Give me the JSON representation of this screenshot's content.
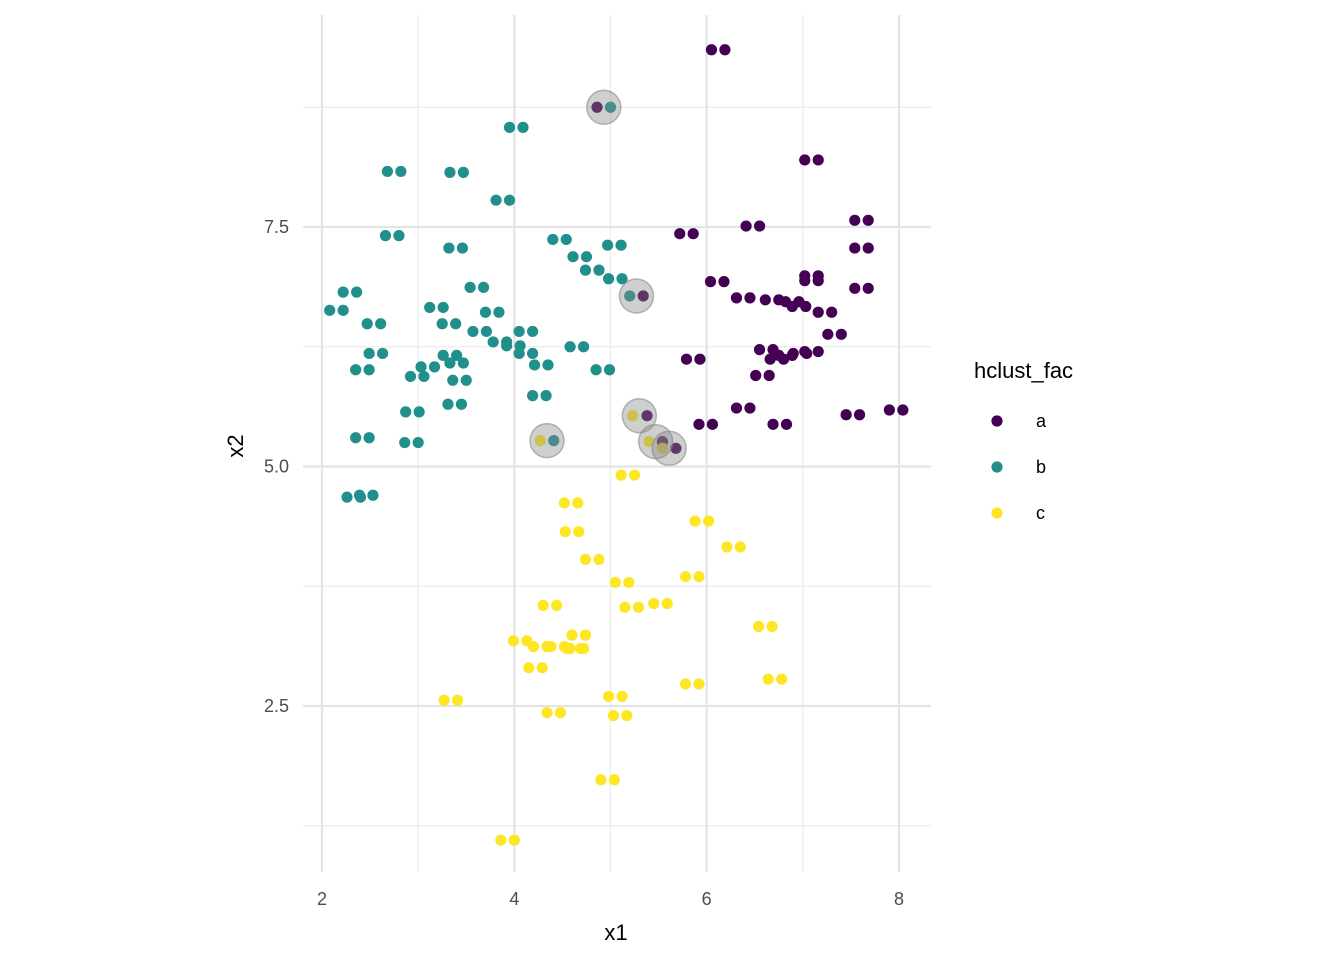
{
  "chart_data": {
    "type": "scatter",
    "xlabel": "x1",
    "ylabel": "x2",
    "xlim": [
      2,
      8
    ],
    "ylim": [
      1.2,
      9.6
    ],
    "x_ticks": [
      2,
      4,
      6,
      8
    ],
    "x_tick_labels": [
      "2",
      "4",
      "6",
      "8"
    ],
    "y_ticks": [
      2.5,
      5.0,
      7.5
    ],
    "y_tick_labels": [
      "2.5",
      "5.0",
      "7.5"
    ],
    "grid": true,
    "legend": {
      "title": "hclust_fac",
      "position": "right",
      "entries": [
        {
          "label": "a",
          "color": "#440154"
        },
        {
          "label": "b",
          "color": "#21908C"
        },
        {
          "label": "c",
          "color": "#FDE725"
        }
      ]
    },
    "highlight_style": {
      "fill": "#888888",
      "opacity": 0.4
    },
    "highlights": [
      {
        "x": 4.93,
        "y": 8.75
      },
      {
        "x": 5.27,
        "y": 6.78
      },
      {
        "x": 5.3,
        "y": 5.53
      },
      {
        "x": 4.34,
        "y": 5.27
      },
      {
        "x": 5.47,
        "y": 5.26
      },
      {
        "x": 5.61,
        "y": 5.19
      }
    ],
    "series": [
      {
        "name": "a",
        "color": "#440154",
        "points": [
          [
            6.05,
            9.35
          ],
          [
            6.19,
            9.35
          ],
          [
            4.86,
            8.75
          ],
          [
            7.02,
            8.2
          ],
          [
            7.16,
            8.2
          ],
          [
            7.54,
            7.57
          ],
          [
            7.68,
            7.57
          ],
          [
            6.41,
            7.51
          ],
          [
            6.55,
            7.51
          ],
          [
            5.72,
            7.43
          ],
          [
            5.86,
            7.43
          ],
          [
            7.54,
            7.28
          ],
          [
            7.68,
            7.28
          ],
          [
            7.02,
            6.99
          ],
          [
            7.16,
            6.99
          ],
          [
            7.02,
            6.94
          ],
          [
            7.16,
            6.94
          ],
          [
            6.04,
            6.93
          ],
          [
            6.18,
            6.93
          ],
          [
            7.54,
            6.86
          ],
          [
            7.68,
            6.86
          ],
          [
            5.34,
            6.78
          ],
          [
            6.31,
            6.76
          ],
          [
            6.45,
            6.76
          ],
          [
            6.61,
            6.74
          ],
          [
            6.75,
            6.74
          ],
          [
            6.82,
            6.72
          ],
          [
            6.96,
            6.72
          ],
          [
            6.89,
            6.67
          ],
          [
            7.03,
            6.67
          ],
          [
            7.16,
            6.61
          ],
          [
            7.3,
            6.61
          ],
          [
            7.26,
            6.38
          ],
          [
            7.4,
            6.38
          ],
          [
            6.55,
            6.22
          ],
          [
            6.69,
            6.22
          ],
          [
            7.02,
            6.2
          ],
          [
            7.16,
            6.2
          ],
          [
            6.9,
            6.18
          ],
          [
            7.04,
            6.18
          ],
          [
            6.75,
            6.16
          ],
          [
            6.89,
            6.16
          ],
          [
            5.79,
            6.12
          ],
          [
            5.93,
            6.12
          ],
          [
            6.66,
            6.12
          ],
          [
            6.8,
            6.12
          ],
          [
            6.51,
            5.95
          ],
          [
            6.65,
            5.95
          ],
          [
            6.31,
            5.61
          ],
          [
            6.45,
            5.61
          ],
          [
            7.9,
            5.59
          ],
          [
            8.04,
            5.59
          ],
          [
            7.45,
            5.54
          ],
          [
            7.59,
            5.54
          ],
          [
            5.38,
            5.53
          ],
          [
            5.92,
            5.44
          ],
          [
            6.06,
            5.44
          ],
          [
            6.69,
            5.44
          ],
          [
            6.83,
            5.44
          ],
          [
            5.54,
            5.26
          ],
          [
            5.68,
            5.19
          ]
        ]
      },
      {
        "name": "b",
        "color": "#21908C",
        "points": [
          [
            3.95,
            8.54
          ],
          [
            4.09,
            8.54
          ],
          [
            5.0,
            8.75
          ],
          [
            2.68,
            8.08
          ],
          [
            2.82,
            8.08
          ],
          [
            3.33,
            8.07
          ],
          [
            3.47,
            8.07
          ],
          [
            3.81,
            7.78
          ],
          [
            3.95,
            7.78
          ],
          [
            2.66,
            7.41
          ],
          [
            2.8,
            7.41
          ],
          [
            4.4,
            7.37
          ],
          [
            4.54,
            7.37
          ],
          [
            3.32,
            7.28
          ],
          [
            3.46,
            7.28
          ],
          [
            4.97,
            7.31
          ],
          [
            5.11,
            7.31
          ],
          [
            4.61,
            7.19
          ],
          [
            4.75,
            7.19
          ],
          [
            4.74,
            7.05
          ],
          [
            4.88,
            7.05
          ],
          [
            4.98,
            6.96
          ],
          [
            5.12,
            6.96
          ],
          [
            3.54,
            6.87
          ],
          [
            3.68,
            6.87
          ],
          [
            2.22,
            6.82
          ],
          [
            2.36,
            6.82
          ],
          [
            5.2,
            6.78
          ],
          [
            3.12,
            6.66
          ],
          [
            3.26,
            6.66
          ],
          [
            2.08,
            6.63
          ],
          [
            2.22,
            6.63
          ],
          [
            3.7,
            6.61
          ],
          [
            3.84,
            6.61
          ],
          [
            3.25,
            6.49
          ],
          [
            3.39,
            6.49
          ],
          [
            2.47,
            6.49
          ],
          [
            2.61,
            6.49
          ],
          [
            3.57,
            6.41
          ],
          [
            3.71,
            6.41
          ],
          [
            4.05,
            6.41
          ],
          [
            4.19,
            6.41
          ],
          [
            3.78,
            6.3
          ],
          [
            3.92,
            6.3
          ],
          [
            3.92,
            6.26
          ],
          [
            4.06,
            6.26
          ],
          [
            4.58,
            6.25
          ],
          [
            4.72,
            6.25
          ],
          [
            4.05,
            6.18
          ],
          [
            4.19,
            6.18
          ],
          [
            2.49,
            6.18
          ],
          [
            2.63,
            6.18
          ],
          [
            3.26,
            6.16
          ],
          [
            3.4,
            6.16
          ],
          [
            3.33,
            6.08
          ],
          [
            3.47,
            6.08
          ],
          [
            4.21,
            6.06
          ],
          [
            4.35,
            6.06
          ],
          [
            3.03,
            6.04
          ],
          [
            3.17,
            6.04
          ],
          [
            2.35,
            6.01
          ],
          [
            2.49,
            6.01
          ],
          [
            4.85,
            6.01
          ],
          [
            4.99,
            6.01
          ],
          [
            2.92,
            5.94
          ],
          [
            3.06,
            5.94
          ],
          [
            3.36,
            5.9
          ],
          [
            3.5,
            5.9
          ],
          [
            4.19,
            5.74
          ],
          [
            4.33,
            5.74
          ],
          [
            3.31,
            5.65
          ],
          [
            3.45,
            5.65
          ],
          [
            2.87,
            5.57
          ],
          [
            3.01,
            5.57
          ],
          [
            2.35,
            5.3
          ],
          [
            2.49,
            5.3
          ],
          [
            2.86,
            5.25
          ],
          [
            3.0,
            5.25
          ],
          [
            4.41,
            5.27
          ],
          [
            2.26,
            4.68
          ],
          [
            2.4,
            4.68
          ],
          [
            2.39,
            4.7
          ],
          [
            2.53,
            4.7
          ]
        ]
      },
      {
        "name": "c",
        "color": "#FDE725",
        "points": [
          [
            4.27,
            5.27
          ],
          [
            5.23,
            5.53
          ],
          [
            5.4,
            5.26
          ],
          [
            5.54,
            5.19
          ],
          [
            5.11,
            4.91
          ],
          [
            5.25,
            4.91
          ],
          [
            4.52,
            4.62
          ],
          [
            4.66,
            4.62
          ],
          [
            5.88,
            4.43
          ],
          [
            6.02,
            4.43
          ],
          [
            4.53,
            4.32
          ],
          [
            4.67,
            4.32
          ],
          [
            6.21,
            4.16
          ],
          [
            6.35,
            4.16
          ],
          [
            4.74,
            4.03
          ],
          [
            4.88,
            4.03
          ],
          [
            5.78,
            3.85
          ],
          [
            5.92,
            3.85
          ],
          [
            5.05,
            3.79
          ],
          [
            5.19,
            3.79
          ],
          [
            4.3,
            3.55
          ],
          [
            4.44,
            3.55
          ],
          [
            5.45,
            3.57
          ],
          [
            5.59,
            3.57
          ],
          [
            5.15,
            3.53
          ],
          [
            5.29,
            3.53
          ],
          [
            6.54,
            3.33
          ],
          [
            6.68,
            3.33
          ],
          [
            4.6,
            3.24
          ],
          [
            4.74,
            3.24
          ],
          [
            3.99,
            3.18
          ],
          [
            4.13,
            3.18
          ],
          [
            4.2,
            3.12
          ],
          [
            4.34,
            3.12
          ],
          [
            4.38,
            3.12
          ],
          [
            4.52,
            3.12
          ],
          [
            4.55,
            3.1
          ],
          [
            4.69,
            3.1
          ],
          [
            4.58,
            3.1
          ],
          [
            4.72,
            3.1
          ],
          [
            4.15,
            2.9
          ],
          [
            4.29,
            2.9
          ],
          [
            6.64,
            2.78
          ],
          [
            6.78,
            2.78
          ],
          [
            5.78,
            2.73
          ],
          [
            5.92,
            2.73
          ],
          [
            4.98,
            2.6
          ],
          [
            5.12,
            2.6
          ],
          [
            3.27,
            2.56
          ],
          [
            3.41,
            2.56
          ],
          [
            4.34,
            2.43
          ],
          [
            4.48,
            2.43
          ],
          [
            5.03,
            2.4
          ],
          [
            5.17,
            2.4
          ],
          [
            4.9,
            1.73
          ],
          [
            5.04,
            1.73
          ],
          [
            3.86,
            1.1
          ],
          [
            4.0,
            1.1
          ]
        ]
      }
    ]
  }
}
